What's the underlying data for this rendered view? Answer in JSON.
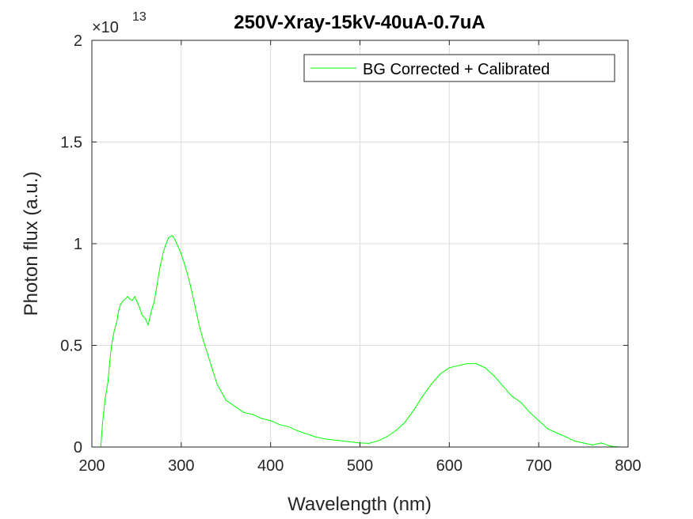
{
  "chart_data": {
    "type": "line",
    "title": "250V-Xray-15kV-40uA-0.7uA",
    "xlabel": "Wavelength (nm)",
    "ylabel": "Photon flux (a.u.)",
    "y_exponent_base": "×10",
    "y_exponent_power": "13",
    "xlim": [
      200,
      800
    ],
    "ylim": [
      0,
      2
    ],
    "xticks": [
      200,
      300,
      400,
      500,
      600,
      700,
      800
    ],
    "yticks": [
      0,
      0.5,
      1,
      1.5,
      2
    ],
    "ytick_labels": [
      "0",
      "0.5",
      "1",
      "1.5",
      "2"
    ],
    "grid": true,
    "legend_position": "top-right",
    "series": [
      {
        "name": "BG Corrected + Calibrated",
        "color": "#00ff00",
        "x": [
          210,
          212,
          215,
          218,
          220,
          222,
          225,
          228,
          230,
          232,
          235,
          238,
          240,
          242,
          245,
          248,
          250,
          253,
          256,
          260,
          263,
          266,
          270,
          273,
          276,
          280,
          283,
          286,
          290,
          293,
          296,
          300,
          305,
          310,
          315,
          320,
          325,
          330,
          335,
          340,
          350,
          360,
          370,
          380,
          390,
          400,
          410,
          420,
          430,
          440,
          450,
          460,
          470,
          480,
          490,
          500,
          510,
          520,
          530,
          540,
          550,
          560,
          570,
          580,
          590,
          600,
          610,
          620,
          630,
          635,
          640,
          650,
          660,
          670,
          680,
          690,
          700,
          710,
          720,
          730,
          740,
          750,
          760,
          770,
          780,
          790
        ],
        "y": [
          0.0,
          0.12,
          0.24,
          0.32,
          0.42,
          0.5,
          0.57,
          0.62,
          0.67,
          0.7,
          0.72,
          0.73,
          0.74,
          0.73,
          0.72,
          0.74,
          0.72,
          0.69,
          0.65,
          0.63,
          0.6,
          0.66,
          0.72,
          0.8,
          0.88,
          0.96,
          1.0,
          1.03,
          1.04,
          1.02,
          0.99,
          0.95,
          0.88,
          0.8,
          0.7,
          0.6,
          0.52,
          0.45,
          0.38,
          0.31,
          0.23,
          0.2,
          0.17,
          0.16,
          0.14,
          0.13,
          0.11,
          0.1,
          0.08,
          0.065,
          0.05,
          0.04,
          0.035,
          0.03,
          0.025,
          0.02,
          0.018,
          0.03,
          0.05,
          0.08,
          0.12,
          0.18,
          0.25,
          0.31,
          0.36,
          0.39,
          0.4,
          0.41,
          0.41,
          0.4,
          0.39,
          0.35,
          0.3,
          0.25,
          0.22,
          0.17,
          0.13,
          0.09,
          0.07,
          0.05,
          0.03,
          0.02,
          0.01,
          0.02,
          0.005,
          0.0
        ]
      }
    ]
  }
}
